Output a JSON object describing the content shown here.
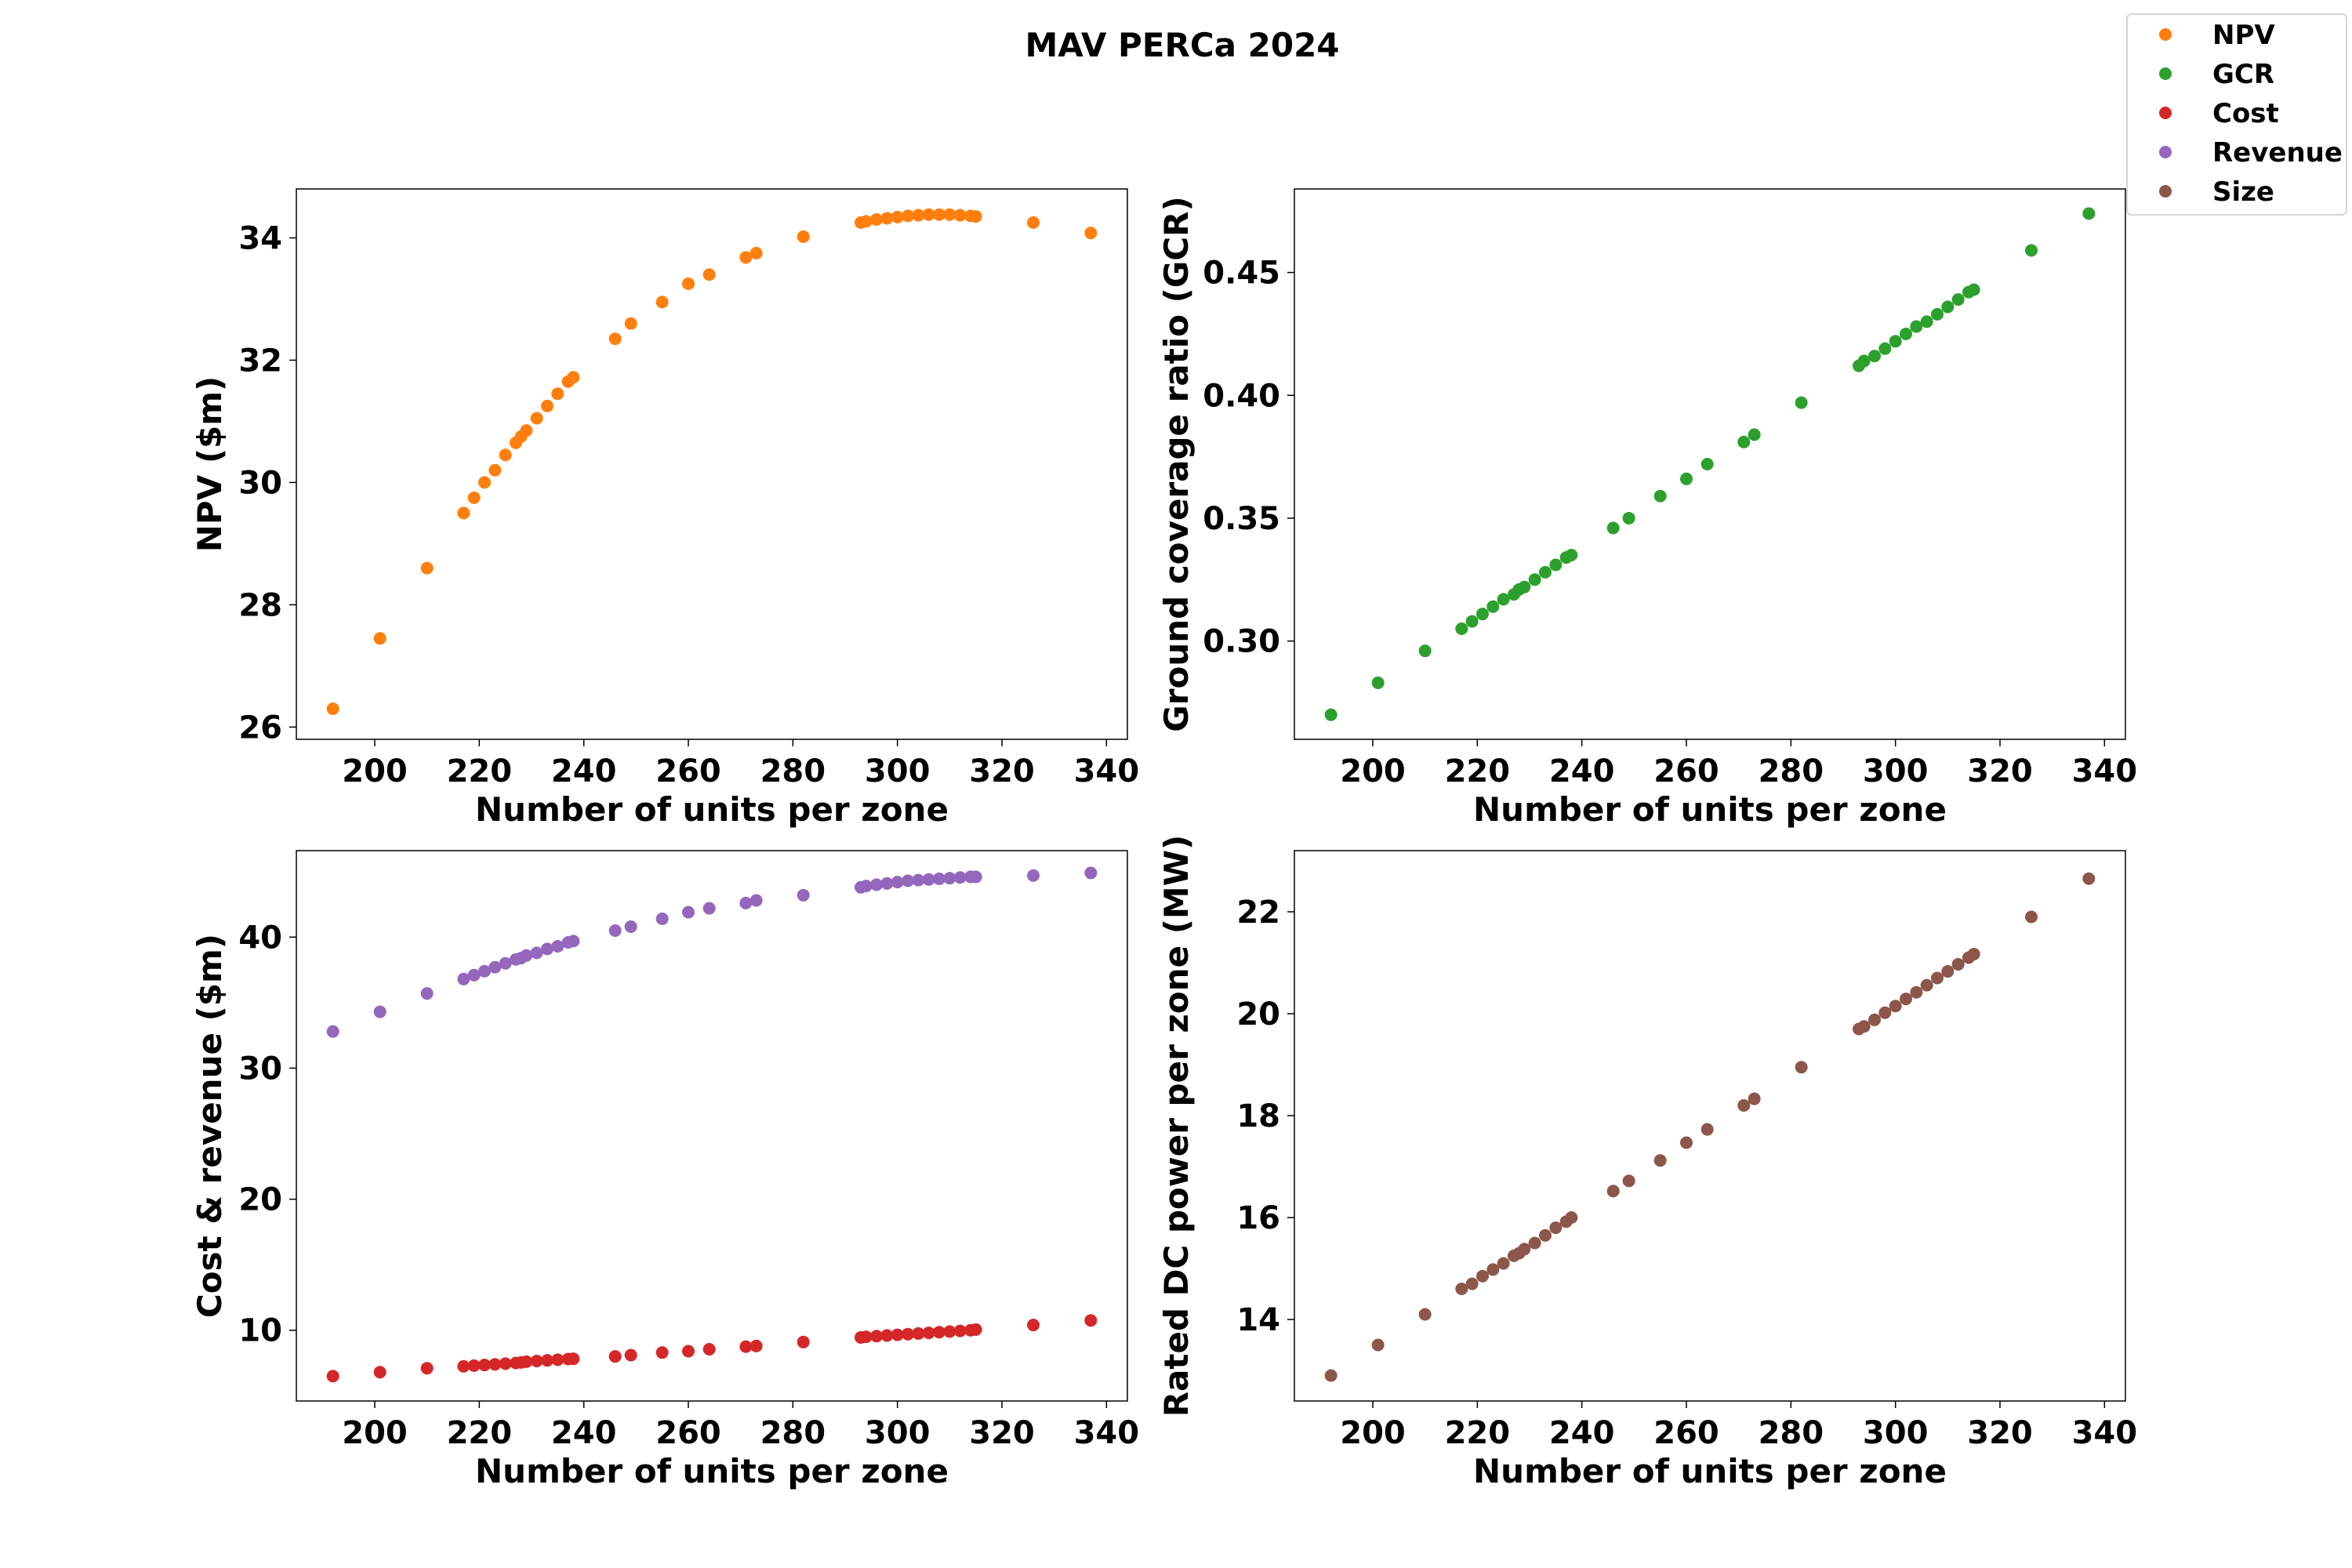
{
  "title": "MAV PERCa 2024",
  "colors": {
    "NPV": "#ff7f0e",
    "GCR": "#2ca02c",
    "Cost": "#d62728",
    "Revenue": "#9467bd",
    "Size": "#8c564b"
  },
  "legend": [
    {
      "label": "NPV",
      "color_key": "NPV"
    },
    {
      "label": "GCR",
      "color_key": "GCR"
    },
    {
      "label": "Cost",
      "color_key": "Cost"
    },
    {
      "label": "Revenue",
      "color_key": "Revenue"
    },
    {
      "label": "Size",
      "color_key": "Size"
    }
  ],
  "chart_data": [
    {
      "type": "scatter",
      "id": "npv",
      "xlabel": "Number of units per zone",
      "ylabel": "NPV ($m)",
      "xlim": [
        185,
        344
      ],
      "ylim": [
        25.8,
        34.8
      ],
      "xticks": [
        200,
        220,
        240,
        260,
        280,
        300,
        320,
        340
      ],
      "yticks": [
        26,
        28,
        30,
        32,
        34
      ],
      "series": [
        {
          "color_key": "NPV",
          "x": [
            192,
            201,
            210,
            217,
            219,
            221,
            223,
            225,
            227,
            228,
            229,
            231,
            233,
            235,
            237,
            238,
            246,
            249,
            255,
            260,
            264,
            271,
            273,
            282,
            293,
            294,
            296,
            298,
            300,
            302,
            304,
            306,
            308,
            310,
            312,
            314,
            315,
            326,
            337
          ],
          "y": [
            26.3,
            27.45,
            28.6,
            29.5,
            29.75,
            30.0,
            30.2,
            30.45,
            30.65,
            30.75,
            30.85,
            31.05,
            31.25,
            31.45,
            31.65,
            31.72,
            32.35,
            32.6,
            32.95,
            33.25,
            33.4,
            33.68,
            33.75,
            34.02,
            34.25,
            34.27,
            34.3,
            34.32,
            34.34,
            34.36,
            34.37,
            34.38,
            34.38,
            34.38,
            34.37,
            34.36,
            34.35,
            34.25,
            34.08
          ]
        }
      ]
    },
    {
      "type": "scatter",
      "id": "gcr",
      "xlabel": "Number of units per zone",
      "ylabel": "Ground coverage ratio (GCR)",
      "xlim": [
        185,
        344
      ],
      "ylim": [
        0.26,
        0.484
      ],
      "xticks": [
        200,
        220,
        240,
        260,
        280,
        300,
        320,
        340
      ],
      "yticks": [
        0.3,
        0.35,
        0.4,
        0.45
      ],
      "ytick_labels": [
        "0.30",
        "0.35",
        "0.40",
        "0.45"
      ],
      "series": [
        {
          "color_key": "GCR",
          "x": [
            192,
            201,
            210,
            217,
            219,
            221,
            223,
            225,
            227,
            228,
            229,
            231,
            233,
            235,
            237,
            238,
            246,
            249,
            255,
            260,
            264,
            271,
            273,
            282,
            293,
            294,
            296,
            298,
            300,
            302,
            304,
            306,
            308,
            310,
            312,
            314,
            315,
            326,
            337
          ],
          "y": [
            0.27,
            0.283,
            0.296,
            0.305,
            0.308,
            0.311,
            0.314,
            0.317,
            0.319,
            0.321,
            0.322,
            0.325,
            0.328,
            0.331,
            0.334,
            0.335,
            0.346,
            0.35,
            0.359,
            0.366,
            0.372,
            0.381,
            0.384,
            0.397,
            0.412,
            0.414,
            0.416,
            0.419,
            0.422,
            0.425,
            0.428,
            0.43,
            0.433,
            0.436,
            0.439,
            0.442,
            0.443,
            0.459,
            0.474
          ]
        }
      ]
    },
    {
      "type": "scatter",
      "id": "cost-revenue",
      "xlabel": "Number of units per zone",
      "ylabel": "Cost & revenue ($m)",
      "xlim": [
        185,
        344
      ],
      "ylim": [
        4.6,
        46.6
      ],
      "xticks": [
        200,
        220,
        240,
        260,
        280,
        300,
        320,
        340
      ],
      "yticks": [
        10,
        20,
        30,
        40
      ],
      "series": [
        {
          "color_key": "Revenue",
          "x": [
            192,
            201,
            210,
            217,
            219,
            221,
            223,
            225,
            227,
            228,
            229,
            231,
            233,
            235,
            237,
            238,
            246,
            249,
            255,
            260,
            264,
            271,
            273,
            282,
            293,
            294,
            296,
            298,
            300,
            302,
            304,
            306,
            308,
            310,
            312,
            314,
            315,
            326,
            337
          ],
          "y": [
            32.8,
            34.3,
            35.7,
            36.8,
            37.1,
            37.4,
            37.7,
            38.0,
            38.3,
            38.4,
            38.6,
            38.8,
            39.1,
            39.3,
            39.6,
            39.7,
            40.5,
            40.8,
            41.4,
            41.9,
            42.2,
            42.6,
            42.8,
            43.2,
            43.8,
            43.9,
            44.0,
            44.1,
            44.2,
            44.3,
            44.35,
            44.4,
            44.45,
            44.5,
            44.55,
            44.6,
            44.6,
            44.7,
            44.9
          ]
        },
        {
          "color_key": "Cost",
          "x": [
            192,
            201,
            210,
            217,
            219,
            221,
            223,
            225,
            227,
            228,
            229,
            231,
            233,
            235,
            237,
            238,
            246,
            249,
            255,
            260,
            264,
            271,
            273,
            282,
            293,
            294,
            296,
            298,
            300,
            302,
            304,
            306,
            308,
            310,
            312,
            314,
            315,
            326,
            337
          ],
          "y": [
            6.5,
            6.8,
            7.1,
            7.25,
            7.3,
            7.35,
            7.4,
            7.45,
            7.5,
            7.55,
            7.6,
            7.65,
            7.7,
            7.75,
            7.8,
            7.82,
            8.0,
            8.1,
            8.3,
            8.4,
            8.55,
            8.75,
            8.8,
            9.1,
            9.45,
            9.5,
            9.55,
            9.6,
            9.65,
            9.7,
            9.75,
            9.8,
            9.85,
            9.9,
            9.95,
            10.0,
            10.05,
            10.4,
            10.75
          ]
        }
      ]
    },
    {
      "type": "scatter",
      "id": "size",
      "xlabel": "Number of units per zone",
      "ylabel": "Rated DC power per zone (MW)",
      "xlim": [
        185,
        344
      ],
      "ylim": [
        12.4,
        23.2
      ],
      "xticks": [
        200,
        220,
        240,
        260,
        280,
        300,
        320,
        340
      ],
      "yticks": [
        14,
        16,
        18,
        20,
        22
      ],
      "series": [
        {
          "color_key": "Size",
          "x": [
            192,
            201,
            210,
            217,
            219,
            221,
            223,
            225,
            227,
            228,
            229,
            231,
            233,
            235,
            237,
            238,
            246,
            249,
            255,
            260,
            264,
            271,
            273,
            282,
            293,
            294,
            296,
            298,
            300,
            302,
            304,
            306,
            308,
            310,
            312,
            314,
            315,
            326,
            337
          ],
          "y": [
            12.9,
            13.5,
            14.1,
            14.6,
            14.7,
            14.85,
            14.98,
            15.1,
            15.25,
            15.3,
            15.38,
            15.5,
            15.65,
            15.8,
            15.92,
            16.0,
            16.52,
            16.72,
            17.12,
            17.47,
            17.73,
            18.2,
            18.33,
            18.95,
            19.7,
            19.75,
            19.88,
            20.02,
            20.15,
            20.29,
            20.42,
            20.56,
            20.7,
            20.83,
            20.97,
            21.1,
            21.17,
            21.9,
            22.65
          ]
        }
      ]
    }
  ]
}
